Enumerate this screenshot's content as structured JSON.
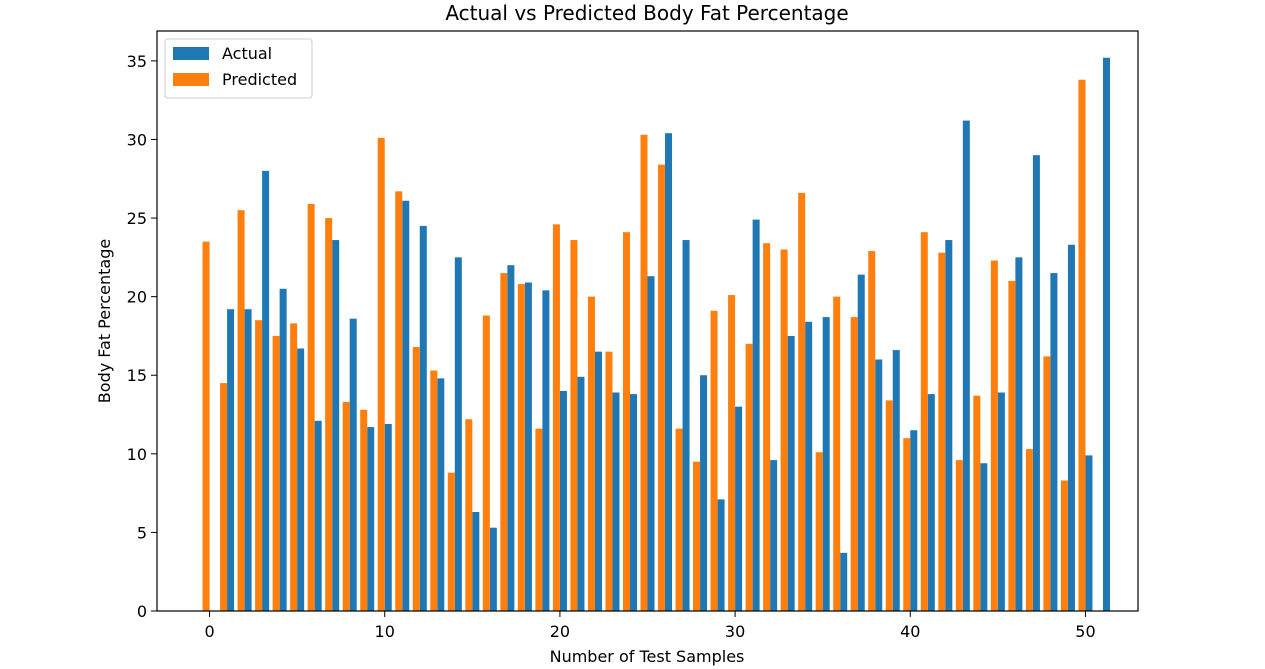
{
  "chart_data": {
    "type": "bar",
    "title": "Actual vs Predicted Body Fat Percentage",
    "xlabel": "Number of Test Samples",
    "ylabel": "Body Fat Percentage",
    "xlim": [
      -3.0,
      53.0
    ],
    "ylim": [
      0,
      36.9
    ],
    "xticks": [
      0,
      10,
      20,
      30,
      40,
      50
    ],
    "yticks": [
      0,
      5,
      10,
      15,
      20,
      25,
      30,
      35
    ],
    "bar_width": 0.4,
    "legend_position": "upper-left",
    "series": [
      {
        "name": "Actual",
        "color": "#1f77b4",
        "offset": 0.2,
        "values": [
          0,
          19.2,
          19.2,
          28.0,
          20.5,
          16.7,
          12.1,
          23.6,
          18.6,
          11.7,
          11.9,
          26.1,
          24.5,
          14.8,
          22.5,
          6.3,
          5.3,
          22.0,
          20.9,
          20.4,
          14.0,
          14.9,
          16.5,
          13.9,
          13.8,
          21.3,
          30.4,
          23.6,
          15.0,
          7.1,
          13.0,
          24.9,
          9.6,
          17.5,
          18.4,
          18.7,
          3.7,
          21.4,
          16.0,
          16.6,
          11.5,
          13.8,
          23.6,
          31.2,
          9.4,
          13.9,
          22.5,
          29.0,
          21.5,
          23.3,
          9.9,
          35.2
        ]
      },
      {
        "name": "Predicted",
        "color": "#ff7f0e",
        "offset": -0.2,
        "values": [
          23.5,
          14.5,
          25.5,
          18.5,
          17.5,
          18.3,
          25.9,
          25.0,
          13.3,
          12.8,
          30.1,
          26.7,
          16.8,
          15.3,
          8.8,
          12.2,
          18.8,
          21.5,
          20.8,
          11.6,
          24.6,
          23.6,
          20.0,
          16.5,
          24.1,
          30.3,
          28.4,
          11.6,
          9.5,
          19.1,
          20.1,
          17.0,
          23.4,
          23.0,
          26.6,
          10.1,
          20.0,
          18.7,
          22.9,
          13.4,
          11.0,
          24.1,
          22.8,
          9.6,
          13.7,
          22.3,
          21.0,
          10.3,
          16.2,
          8.3,
          33.8,
          0
        ]
      }
    ]
  }
}
